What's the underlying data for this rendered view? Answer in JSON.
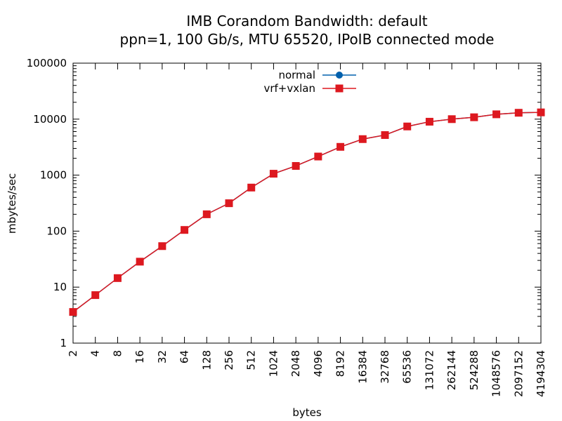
{
  "chart_data": {
    "type": "line",
    "title": "IMB Corandom Bandwidth: default",
    "subtitle": "ppn=1, 100 Gb/s, MTU 65520, IPoIB connected mode",
    "xlabel": "bytes",
    "ylabel": "mbytes/sec",
    "x_scale": "log2",
    "y_scale": "log10",
    "xlim": [
      2,
      4194304
    ],
    "ylim": [
      1,
      100000
    ],
    "grid": false,
    "legend_position": "top-center",
    "x": [
      2,
      4,
      8,
      16,
      32,
      64,
      128,
      256,
      512,
      1024,
      2048,
      4096,
      8192,
      16384,
      32768,
      65536,
      131072,
      262144,
      524288,
      1048576,
      2097152,
      4194304
    ],
    "x_tick_labels": [
      "2",
      "4",
      "8",
      "16",
      "32",
      "64",
      "128",
      "256",
      "512",
      "1024",
      "2048",
      "4096",
      "8192",
      "16384",
      "32768",
      "65536",
      "131072",
      "262144",
      "524288",
      "1048576",
      "2097152",
      "4194304"
    ],
    "y_ticks": [
      1,
      10,
      100,
      1000,
      10000,
      100000
    ],
    "y_tick_labels": [
      "1",
      "10",
      "100",
      "1000",
      "10000",
      "100000"
    ],
    "series": [
      {
        "name": "normal",
        "color": "#0060ad",
        "marker": "circle",
        "values": [
          3.6,
          7.2,
          14.5,
          28.5,
          54,
          105,
          200,
          315,
          600,
          1060,
          1460,
          2150,
          3200,
          4400,
          5200,
          7400,
          9000,
          10000,
          10800,
          12200,
          13000,
          13200
        ]
      },
      {
        "name": "vrf+vxlan",
        "color": "#dd181f",
        "marker": "square",
        "values": [
          3.6,
          7.2,
          14.5,
          28.5,
          54,
          105,
          200,
          315,
          600,
          1060,
          1460,
          2150,
          3200,
          4400,
          5200,
          7400,
          9000,
          10000,
          10800,
          12200,
          13000,
          13200
        ]
      }
    ]
  }
}
